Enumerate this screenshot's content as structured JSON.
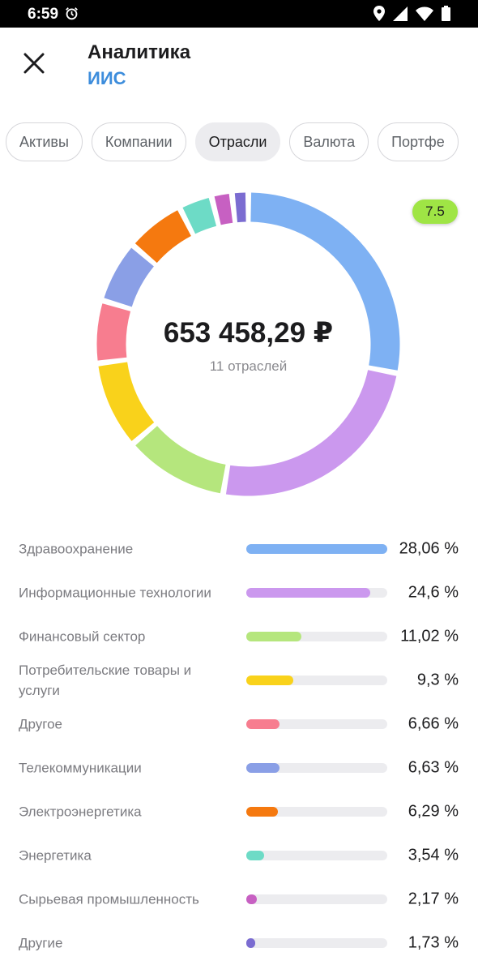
{
  "status_bar": {
    "time": "6:59",
    "icons": [
      "alarm-icon",
      "location-icon",
      "signal-icon",
      "wifi-icon",
      "battery-icon"
    ]
  },
  "header": {
    "title": "Аналитика",
    "subtitle": "ИИС",
    "close_icon": "close-icon",
    "subtitle_color": "#3d8ddc"
  },
  "tabs": [
    {
      "label": "Активы",
      "active": false
    },
    {
      "label": "Компании",
      "active": false
    },
    {
      "label": "Отрасли",
      "active": true
    },
    {
      "label": "Валюта",
      "active": false
    },
    {
      "label": "Портфе",
      "active": false
    }
  ],
  "summary": {
    "total": "653 458,29 ₽",
    "count_label": "11 отраслей",
    "badge": "7.5",
    "badge_color": "#9fe545"
  },
  "chart_data": {
    "type": "donut",
    "unit": "%",
    "categories": [
      "Здравоохранение",
      "Информационные технологии",
      "Финансовый сектор",
      "Потребительские товары и услуги",
      "Другое",
      "Телекоммуникации",
      "Электроэнергетика",
      "Энергетика",
      "Сырьевая промышленность",
      "Другие"
    ],
    "values": [
      28.06,
      24.6,
      11.02,
      9.3,
      6.66,
      6.63,
      6.29,
      3.54,
      2.17,
      1.73
    ],
    "colors": [
      "#7eb1f3",
      "#cb98ee",
      "#b5e67d",
      "#f9d21b",
      "#f77d8f",
      "#8a9fe6",
      "#f5790f",
      "#6ddbc6",
      "#c760c2",
      "#7b6cd1"
    ],
    "value_labels": [
      "28,06 %",
      "24,6 %",
      "11,02 %",
      "9,3 %",
      "6,66 %",
      "6,63 %",
      "6,29 %",
      "3,54 %",
      "2,17 %",
      "1,73 %"
    ]
  }
}
